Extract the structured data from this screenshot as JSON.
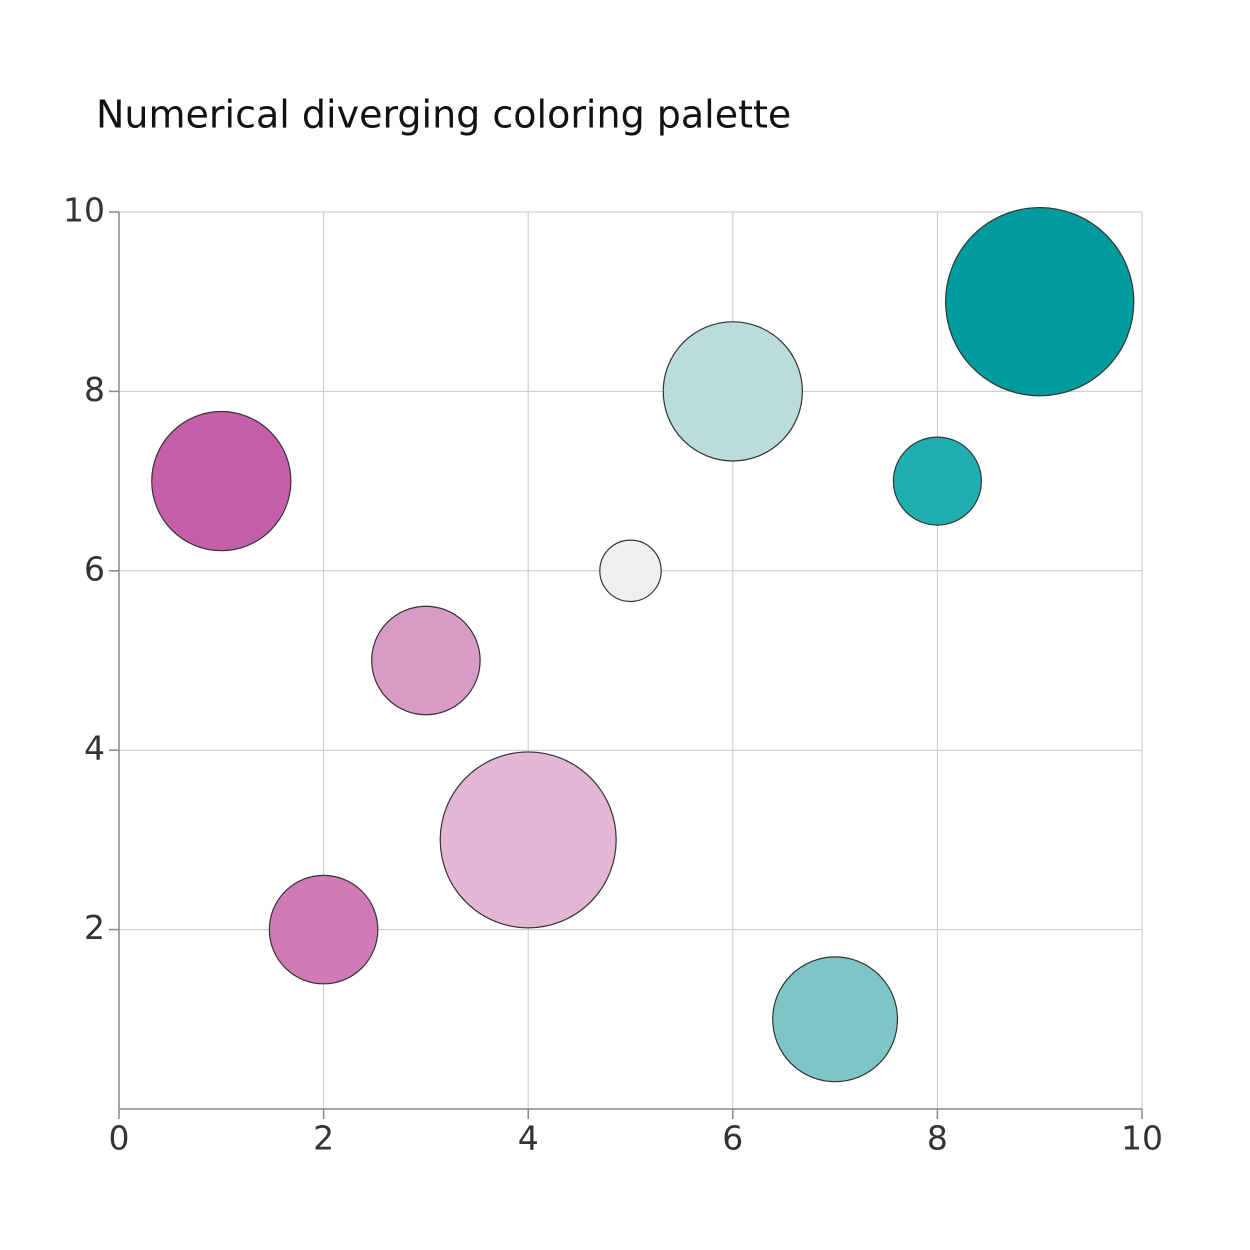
{
  "chart_data": {
    "type": "bubble",
    "title": "Numerical diverging coloring palette",
    "x": [
      1,
      2,
      3,
      4,
      5,
      6,
      7,
      8,
      9
    ],
    "y": [
      7,
      2,
      5,
      3,
      6,
      8,
      1,
      7,
      9
    ],
    "sizes": [
      0.68,
      0.53,
      0.53,
      0.86,
      0.3,
      0.68,
      0.61,
      0.43,
      0.92
    ],
    "colors": [
      "#c55fa9",
      "#d07bb7",
      "#da9ac6",
      "#e3b7d3",
      "#f0f0f0",
      "#bbdcdd",
      "#7ec5c6",
      "#20afb0",
      "#009b9d"
    ],
    "xlim": [
      0,
      10
    ],
    "ylim": [
      0,
      10
    ],
    "xticks": [
      0,
      2,
      4,
      6,
      8,
      10
    ],
    "yticks": [
      2,
      4,
      6,
      8,
      10
    ],
    "grid": true
  }
}
